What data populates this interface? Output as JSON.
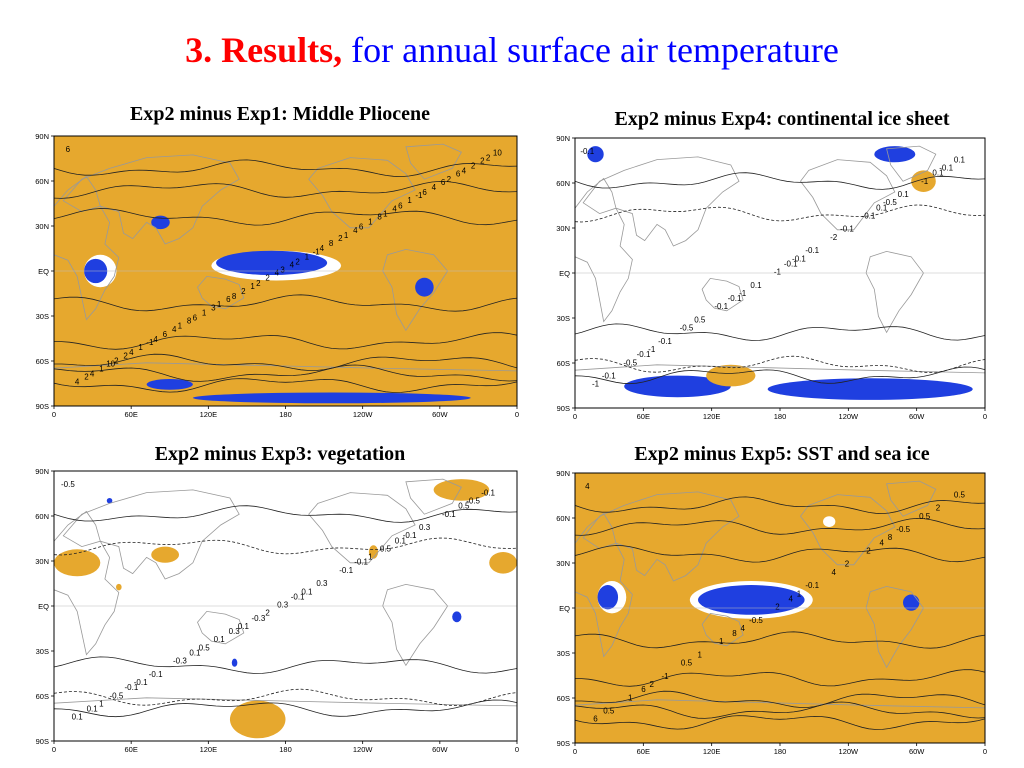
{
  "slide": {
    "heading_bold": "3. Results,",
    "heading_rest": "for annual surface air temperature"
  },
  "colors": {
    "warm_fill": "#E6A82E",
    "cold_fill": "#1F3FE0",
    "title_red": "#FF0000",
    "title_blue": "#0000FF"
  },
  "axes": {
    "lat_labels": [
      "90N",
      "60N",
      "30N",
      "EQ",
      "30S",
      "60S",
      "90S"
    ],
    "lon_labels": [
      "0",
      "60E",
      "120E",
      "180",
      "120W",
      "60W",
      "0"
    ]
  },
  "panels": [
    {
      "title": "Exp2 minus Exp1: Middle Pliocene",
      "contour_labels": [
        "6",
        "8",
        "6",
        "4",
        "2",
        "4",
        "6",
        "6",
        "4",
        "2",
        "6",
        "4",
        "4",
        "2",
        "1",
        "1",
        "2",
        "3",
        "2",
        "1",
        "1",
        "4",
        "2",
        "1",
        "1",
        "1",
        "2",
        "1",
        "1",
        "1",
        "2",
        "4",
        "6",
        "8",
        "10",
        "6",
        "4",
        "2",
        "4",
        "6",
        "8",
        "4",
        "2",
        "1",
        "-1",
        "-1",
        "-1",
        "2",
        "3",
        "8",
        "10",
        "4",
        "6",
        "4",
        "2"
      ]
    },
    {
      "title": "Exp2 minus Exp4: continental ice sheet",
      "contour_labels": [
        "-0.1",
        "-0.1",
        "0.1",
        "-0.1",
        "-0.1",
        "0.1",
        "0.5",
        "-0.1",
        "-0.1",
        "0.1",
        "0.1",
        "-0.1",
        "-0.1",
        "0.1",
        "-0.1",
        "-0.1",
        "-0.5",
        "-1",
        "-1",
        "-0.5",
        "-2",
        "-1",
        "-1",
        "-0.5",
        "-1",
        "-0.1",
        "-0.1"
      ]
    },
    {
      "title": "Exp2 minus Exp3: vegetation",
      "contour_labels": [
        "-0.5",
        "0.3",
        "0.1",
        "-0.1",
        "-0.1",
        "0.5",
        "0.1",
        "-0.1",
        "0.1",
        "-0.3",
        "0.3",
        "-0.1",
        "0.3",
        "-0.1",
        "0.1",
        "0.5",
        "-0.5",
        "0.3",
        "-0.1",
        "-0.3",
        "-0.1",
        "0.1",
        "0.1",
        "-0.1",
        "-0.1",
        "0.1",
        "-0.5",
        "0.5",
        "1",
        "1",
        "2"
      ]
    },
    {
      "title": "Exp2 minus Exp5: SST and sea ice",
      "contour_labels": [
        "4",
        "8",
        "4",
        "6",
        "4",
        "2",
        "1",
        "2",
        "0.5",
        "-0.5",
        "-0.5",
        "-1",
        "-0.1",
        "0.5",
        "1",
        "2",
        "1",
        "2",
        "0.5",
        "0.5",
        "4",
        "6",
        "4",
        "8",
        "2",
        "1"
      ]
    }
  ]
}
